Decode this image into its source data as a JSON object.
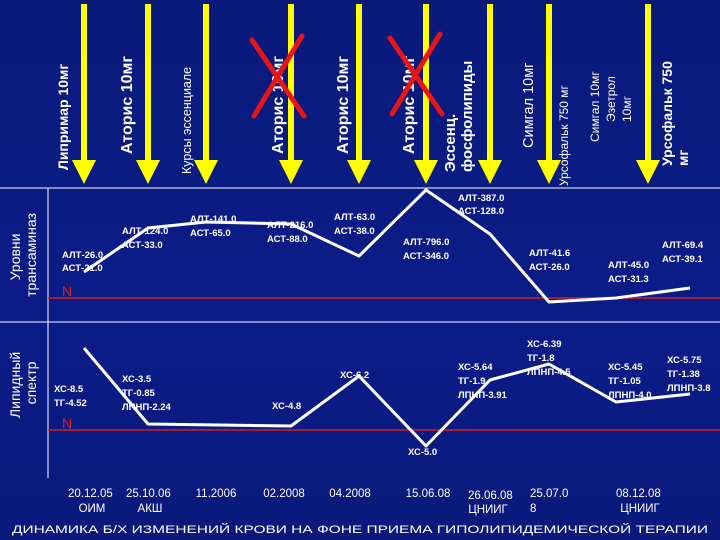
{
  "side_labels": {
    "transaminases": [
      "Уровни",
      "трансаминаз"
    ],
    "lipid": [
      "Липидный",
      "спектр"
    ]
  },
  "norm_mark": "N",
  "drugs": [
    {
      "text": [
        "Липримар 10мг"
      ],
      "crossed": false
    },
    {
      "text": [
        "Аторис 10мг"
      ],
      "crossed": false
    },
    {
      "text": [
        "Курсы эссенциале"
      ],
      "crossed": false
    },
    {
      "text": [
        "Аторис 10мг"
      ],
      "crossed": true
    },
    {
      "text": [
        "Аторис 10мг"
      ],
      "crossed": false
    },
    {
      "text": [
        "Аторис 10мг"
      ],
      "crossed": true
    },
    {
      "text": [
        "Эссенц.",
        "фосфолипиды"
      ],
      "crossed": false
    },
    {
      "text": [
        "Симгал 10мг"
      ],
      "crossed": false
    },
    {
      "text": [
        "Урсофальк 750 мг"
      ],
      "crossed": false
    },
    {
      "text": [
        "Симгал 10мг",
        "Эзетрол",
        "10мг"
      ],
      "crossed": false
    },
    {
      "text": [
        "Урсофальк 750",
        "мг"
      ],
      "crossed": false
    }
  ],
  "transaminase_labels": [
    [
      "АЛТ-26.0",
      "АСТ-21.0"
    ],
    [
      "АЛТ-124.0",
      "АСТ-33.0"
    ],
    [
      "АЛТ-141.0",
      "АСТ-65.0"
    ],
    [
      "АЛТ-216.0",
      "АСТ-88.0"
    ],
    [
      "АЛТ-63.0",
      "АСТ-38.0"
    ],
    [
      "АЛТ-387.0",
      "АСТ-128.0"
    ],
    [
      "АЛТ-796.0",
      "АСТ-346.0"
    ],
    [
      "АЛТ-41.6",
      "АСТ-26.0"
    ],
    [
      "АЛТ-45.0",
      "АСТ-31.3"
    ],
    [
      "АЛТ-69.4",
      "АСТ-39.1"
    ]
  ],
  "lipid_labels": [
    [
      "ХС-8.5",
      "ТГ-4.52"
    ],
    [
      "ХС-3.5",
      "ТГ-0.85",
      "ЛПНП-2.24"
    ],
    [
      "ХС-4.8"
    ],
    [
      "ХС-6.2"
    ],
    [
      "ХС-5.0"
    ],
    [
      "ХС-5.64",
      "ТГ-1.9",
      "ЛПНП-3.91"
    ],
    [
      "ХС-6.39",
      "ТГ-1.8",
      "ЛПНП-4.5"
    ],
    [
      "ХС-5.45",
      "ТГ-1.05",
      "ЛПНП-4.0"
    ],
    [
      "ХС-5.75",
      "ТГ-1.38",
      "ЛПНП-3.8"
    ]
  ],
  "dates": [
    [
      "20.12.05",
      "ОИМ"
    ],
    [
      "25.10.06",
      "АКШ"
    ],
    [
      "11.2006"
    ],
    [
      "02.2008"
    ],
    [
      "04.2008"
    ],
    [
      "15.06.08"
    ],
    [
      "26.06.08",
      "ЦНИИГ"
    ],
    [
      "25.07.0",
      "8"
    ],
    [
      "08.12.08",
      "ЦНИИГ"
    ]
  ],
  "footer": "ДИНАМИКА Б/Х ИЗМЕНЕНИЙ КРОВИ НА ФОНЕ ПРИЕМА ГИПОЛИПИДЕМИЧЕСКОЙ ТЕРАПИИ",
  "colors": {
    "background": "#0b1c88",
    "arrow": "#ffff00",
    "line": "#ffffff",
    "norm": "#d42020",
    "cross": "#e81515"
  }
}
